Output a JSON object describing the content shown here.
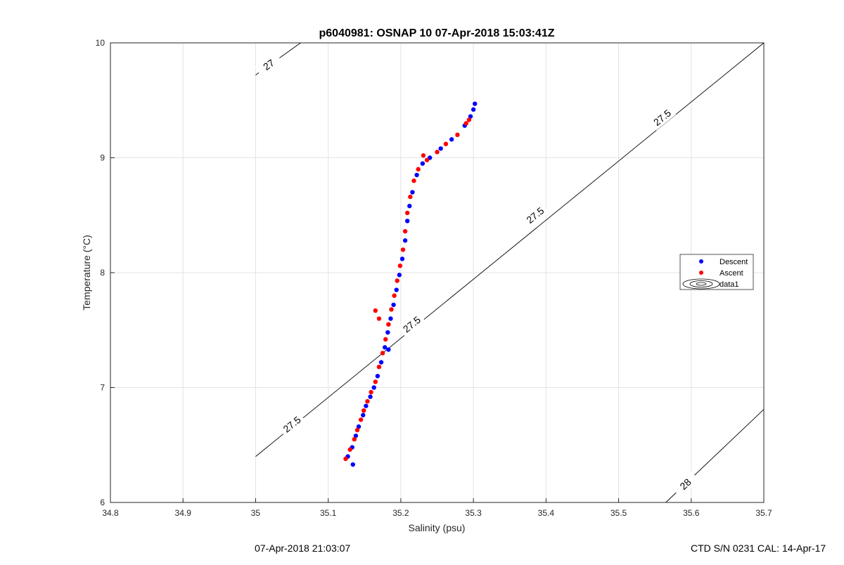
{
  "chart_data": {
    "type": "scatter",
    "title": "p6040981: OSNAP 10 07-Apr-2018 15:03:41Z",
    "xlabel": "Salinity (psu)",
    "ylabel": "Temperature (°C)",
    "xlim": [
      34.8,
      35.7
    ],
    "ylim": [
      6,
      10
    ],
    "xticks": [
      "34.8",
      "34.9",
      "35",
      "35.1",
      "35.2",
      "35.3",
      "35.4",
      "35.5",
      "35.6",
      "35.7"
    ],
    "yticks": [
      "6",
      "7",
      "8",
      "9",
      "10"
    ],
    "grid": true,
    "legend_position": "right",
    "series": [
      {
        "name": "Descent",
        "color": "#0000ff",
        "points": [
          [
            35.134,
            6.33
          ],
          [
            35.127,
            6.4
          ],
          [
            35.133,
            6.48
          ],
          [
            35.138,
            6.58
          ],
          [
            35.142,
            6.66
          ],
          [
            35.148,
            6.76
          ],
          [
            35.152,
            6.84
          ],
          [
            35.158,
            6.92
          ],
          [
            35.163,
            7.0
          ],
          [
            35.168,
            7.1
          ],
          [
            35.173,
            7.22
          ],
          [
            35.178,
            7.35
          ],
          [
            35.182,
            7.48
          ],
          [
            35.186,
            7.6
          ],
          [
            35.19,
            7.72
          ],
          [
            35.194,
            7.85
          ],
          [
            35.198,
            7.98
          ],
          [
            35.202,
            8.12
          ],
          [
            35.206,
            8.28
          ],
          [
            35.209,
            8.45
          ],
          [
            35.212,
            8.58
          ],
          [
            35.216,
            8.7
          ],
          [
            35.222,
            8.85
          ],
          [
            35.23,
            8.95
          ],
          [
            35.24,
            9.0
          ],
          [
            35.255,
            9.08
          ],
          [
            35.27,
            9.16
          ],
          [
            35.288,
            9.28
          ],
          [
            35.296,
            9.36
          ],
          [
            35.3,
            9.42
          ],
          [
            35.302,
            9.47
          ],
          [
            35.183,
            7.33
          ]
        ]
      },
      {
        "name": "Ascent",
        "color": "#ff0000",
        "points": [
          [
            35.124,
            6.38
          ],
          [
            35.13,
            6.46
          ],
          [
            35.136,
            6.55
          ],
          [
            35.14,
            6.63
          ],
          [
            35.145,
            6.72
          ],
          [
            35.149,
            6.8
          ],
          [
            35.154,
            6.88
          ],
          [
            35.159,
            6.96
          ],
          [
            35.165,
            7.05
          ],
          [
            35.17,
            7.18
          ],
          [
            35.175,
            7.3
          ],
          [
            35.179,
            7.42
          ],
          [
            35.183,
            7.55
          ],
          [
            35.187,
            7.68
          ],
          [
            35.191,
            7.8
          ],
          [
            35.195,
            7.93
          ],
          [
            35.199,
            8.06
          ],
          [
            35.203,
            8.2
          ],
          [
            35.206,
            8.36
          ],
          [
            35.209,
            8.52
          ],
          [
            35.213,
            8.66
          ],
          [
            35.218,
            8.8
          ],
          [
            35.224,
            8.9
          ],
          [
            35.236,
            8.98
          ],
          [
            35.25,
            9.05
          ],
          [
            35.262,
            9.12
          ],
          [
            35.278,
            9.2
          ],
          [
            35.29,
            9.3
          ],
          [
            35.294,
            9.33
          ],
          [
            35.165,
            7.67
          ],
          [
            35.17,
            7.6
          ],
          [
            35.231,
            9.02
          ]
        ]
      }
    ],
    "contours": {
      "name": "data1",
      "lines": [
        {
          "label": "27",
          "points": [
            [
              35.0,
              9.72
            ],
            [
              35.062,
              10.0
            ]
          ],
          "label_at": [
            35.018,
            9.81
          ]
        },
        {
          "label": "27.5",
          "points": [
            [
              35.0,
              6.4
            ],
            [
              35.7,
              10.0
            ]
          ],
          "labels_at": [
            [
              35.05,
              6.68
            ],
            [
              35.215,
              7.55
            ],
            [
              35.385,
              8.5
            ],
            [
              35.56,
              9.35
            ]
          ]
        },
        {
          "label": "28",
          "points": [
            [
              35.565,
              6.0
            ],
            [
              35.7,
              6.81
            ]
          ],
          "label_at": [
            35.592,
            6.16
          ]
        }
      ]
    }
  },
  "footer": {
    "left": "07-Apr-2018 21:03:07",
    "right": "CTD S/N 0231  CAL: 14-Apr-17"
  }
}
